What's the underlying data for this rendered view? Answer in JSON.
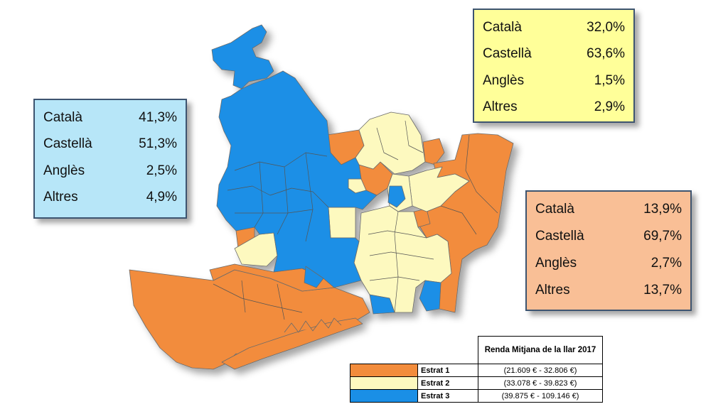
{
  "colors": {
    "estrat_1": "#f28c3c",
    "estrat_2": "#fdf9bf",
    "estrat_3": "#1a8fe6",
    "box_blue": "#b7e6f8",
    "box_yellow": "#ffff99",
    "box_orange": "#f9bf96"
  },
  "boxes": {
    "blue": {
      "rows": [
        {
          "label": "Català",
          "value": "41,3%"
        },
        {
          "label": "Castellà",
          "value": "51,3%"
        },
        {
          "label": "Anglès",
          "value": "2,5%"
        },
        {
          "label": "Altres",
          "value": "4,9%"
        }
      ]
    },
    "yellow": {
      "rows": [
        {
          "label": "Català",
          "value": "32,0%"
        },
        {
          "label": "Castellà",
          "value": "63,6%"
        },
        {
          "label": "Anglès",
          "value": "1,5%"
        },
        {
          "label": "Altres",
          "value": "2,9%"
        }
      ]
    },
    "orange": {
      "rows": [
        {
          "label": "Català",
          "value": "13,9%"
        },
        {
          "label": "Castellà",
          "value": "69,7%"
        },
        {
          "label": "Anglès",
          "value": "2,7%"
        },
        {
          "label": "Altres",
          "value": "13,7%"
        }
      ]
    }
  },
  "legend": {
    "title": "Renda Mitjana de la llar 2017",
    "items": [
      {
        "name": "Estrat 1",
        "range": "(21.609 € - 32.806 €)"
      },
      {
        "name": "Estrat 2",
        "range": "(33.078 € - 39.823 €)"
      },
      {
        "name": "Estrat 3",
        "range": "(39.875 € - 109.146 €)"
      }
    ]
  }
}
